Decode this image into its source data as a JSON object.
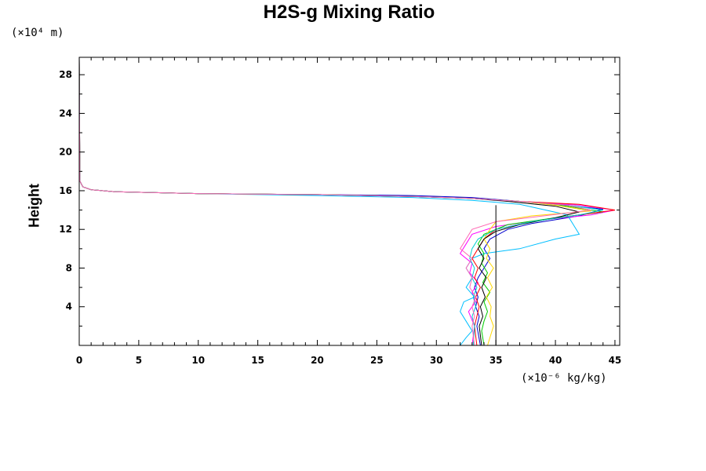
{
  "chart_data": {
    "type": "line",
    "title": "H2S-g Mixing Ratio",
    "ylabel": "Height",
    "y_unit": "(×10⁴ m)",
    "x_unit": "(×10⁻⁶ kg/kg)",
    "xlim": [
      0,
      45.4
    ],
    "ylim": [
      0,
      29.8
    ],
    "x_ticks": [
      0,
      5,
      10,
      15,
      20,
      25,
      30,
      35,
      40,
      45
    ],
    "y_ticks": [
      4,
      8,
      12,
      16,
      20,
      24,
      28
    ],
    "grid": false,
    "legend": "none",
    "reference_line": {
      "x": 35,
      "y_range": [
        0,
        14.5
      ],
      "color": "#000000"
    },
    "series": [
      {
        "color": "#0000cd",
        "x": [
          0,
          0.05,
          0.3,
          1,
          3,
          10,
          20,
          28,
          33,
          36,
          40,
          44,
          42,
          38,
          36,
          34.5,
          34,
          34.5,
          34,
          33.5,
          33.2,
          33.5,
          33.3,
          33.6,
          33.4,
          33.7
        ],
        "y": [
          29.8,
          17,
          16.4,
          16.1,
          15.9,
          15.7,
          15.6,
          15.5,
          15.3,
          15,
          14.6,
          14.1,
          13.4,
          12.6,
          12,
          11,
          10,
          9,
          8,
          7,
          6,
          5,
          4,
          3,
          2,
          0
        ]
      },
      {
        "color": "#ff00ff",
        "x": [
          0,
          0.05,
          0.3,
          1,
          3,
          10,
          20,
          28,
          33,
          37,
          42,
          45,
          43,
          39,
          35,
          33,
          32.5,
          32,
          33,
          32.8,
          33.5,
          33,
          33.3,
          32.7,
          33.2,
          33
        ],
        "y": [
          29.8,
          17,
          16.4,
          16.1,
          15.9,
          15.7,
          15.6,
          15.4,
          15.2,
          14.9,
          14.5,
          14,
          13.5,
          13,
          12.3,
          11.5,
          10.5,
          9.5,
          8.5,
          7.5,
          6.5,
          5.5,
          4.5,
          3.5,
          2,
          0
        ]
      },
      {
        "color": "#00bfff",
        "x": [
          0,
          0.05,
          0.3,
          1,
          3,
          10,
          20,
          28,
          33,
          37,
          41,
          42,
          40,
          37,
          34,
          33,
          32.5,
          33,
          32.5,
          33.2,
          32.3,
          32,
          32.5,
          33,
          32.5,
          32
        ],
        "y": [
          29.8,
          17,
          16.4,
          16.1,
          15.9,
          15.7,
          15.5,
          15.3,
          15,
          14.6,
          13.5,
          11.5,
          11,
          10,
          9.5,
          9,
          8,
          7,
          6,
          5,
          4.5,
          3.5,
          2.5,
          1.5,
          0.8,
          0
        ]
      },
      {
        "color": "#00cc00",
        "x": [
          0,
          0.05,
          0.3,
          1,
          3,
          10,
          20,
          28,
          33,
          37,
          41,
          44,
          40,
          36,
          34,
          33.5,
          34,
          33.8,
          34.3,
          33.9,
          34.5,
          34,
          34.3,
          34,
          33.8,
          34
        ],
        "y": [
          29.8,
          17,
          16.4,
          16.1,
          15.9,
          15.7,
          15.6,
          15.4,
          15.2,
          14.9,
          14.4,
          13.8,
          13.2,
          12.5,
          11.5,
          10.5,
          9.5,
          8.5,
          7.5,
          6.5,
          5.5,
          4.5,
          3.5,
          2.5,
          1.5,
          0
        ]
      },
      {
        "color": "#ff0000",
        "x": [
          0,
          0.05,
          0.3,
          1,
          3,
          10,
          20,
          28,
          33,
          37,
          42,
          45,
          42,
          38,
          35,
          34,
          33.5,
          33,
          33.5,
          33.2,
          33.7,
          33.3,
          33.6,
          33.4,
          33.2,
          33.4
        ],
        "y": [
          29.8,
          17,
          16.4,
          16.1,
          15.9,
          15.7,
          15.6,
          15.4,
          15.2,
          14.9,
          14.6,
          14,
          13.5,
          12.8,
          12,
          11,
          10,
          9,
          8,
          7,
          6,
          5,
          4,
          3,
          2,
          0
        ]
      },
      {
        "color": "#ffd700",
        "x": [
          0,
          0.05,
          0.3,
          1,
          3,
          10,
          20,
          28,
          33,
          37,
          40,
          43,
          38,
          35,
          34.5,
          34,
          34.5,
          34.2,
          34.8,
          34.3,
          34.7,
          34.2,
          34.6,
          34.5,
          34.8,
          34.3
        ],
        "y": [
          29.8,
          17,
          16.4,
          16.1,
          15.9,
          15.7,
          15.6,
          15.4,
          15.2,
          14.9,
          14.5,
          13.9,
          13.4,
          12.8,
          12,
          11,
          10,
          9,
          8,
          7,
          6,
          5,
          4,
          3,
          2,
          0
        ]
      },
      {
        "color": "#000000",
        "x": [
          0,
          0.05,
          0.3,
          1,
          3,
          10,
          20,
          28,
          33,
          36,
          40,
          42,
          40,
          37,
          35,
          34,
          33.5,
          34,
          33.6,
          34.2,
          33.8,
          34.1,
          33.7,
          33.9,
          33.6,
          33.8
        ],
        "y": [
          29.8,
          17,
          16.4,
          16.1,
          15.9,
          15.7,
          15.6,
          15.4,
          15.2,
          14.9,
          14.4,
          13.8,
          13.2,
          12.5,
          11.8,
          11,
          10,
          9,
          8,
          7,
          6,
          5,
          4,
          3,
          2,
          0
        ]
      },
      {
        "color": "#00ced1",
        "x": [
          0,
          0.05,
          0.3,
          1,
          3,
          10,
          20,
          28,
          33,
          37,
          41,
          44,
          42,
          38,
          35,
          33.5,
          33,
          32.8,
          33.2,
          33,
          33.4,
          33.1,
          33.3,
          33,
          33.2,
          33.1
        ],
        "y": [
          29.8,
          17,
          16.4,
          16.1,
          15.9,
          15.7,
          15.6,
          15.4,
          15.2,
          14.9,
          14.5,
          14,
          13.5,
          12.8,
          12,
          11,
          10,
          9,
          8,
          7,
          6,
          5,
          4,
          3,
          2,
          0
        ]
      },
      {
        "color": "#ff69b4",
        "x": [
          0,
          0.05,
          0.3,
          1,
          3,
          10,
          20,
          28,
          33,
          37,
          41,
          43,
          39,
          35,
          33,
          32.5,
          32,
          33,
          32.5,
          33,
          32.8,
          33.3,
          33,
          33.2,
          33,
          33.2
        ],
        "y": [
          29.8,
          17,
          16.4,
          16.1,
          15.9,
          15.7,
          15.6,
          15.4,
          15.2,
          14.9,
          14.5,
          14,
          13.4,
          12.8,
          12,
          11,
          10,
          9,
          8,
          7,
          6,
          5,
          4,
          3,
          2,
          0
        ]
      }
    ]
  }
}
